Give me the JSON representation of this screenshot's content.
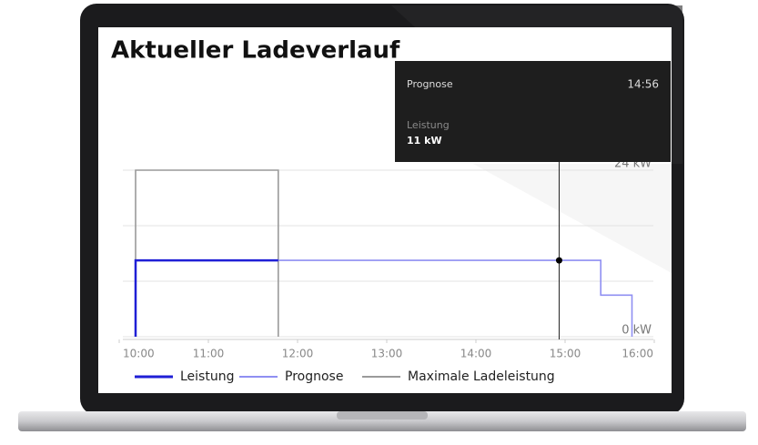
{
  "chart_data": {
    "type": "line",
    "title": "Aktueller Ladeverlauf",
    "xlim": [
      "10:00",
      "16:00"
    ],
    "xticks": [
      "10:00",
      "11:00",
      "12:00",
      "13:00",
      "14:00",
      "15:00",
      "16:00"
    ],
    "ylim": [
      0,
      24
    ],
    "yticks": [
      {
        "value": 0,
        "label": "0 kW"
      },
      {
        "value": 8,
        "label": null
      },
      {
        "value": 16,
        "label": null
      },
      {
        "value": 24,
        "label": "24 kW"
      }
    ],
    "grid": true,
    "series": [
      {
        "name": "Leistung",
        "color": "#1f1fd6",
        "x": [
          "10:11",
          "10:11",
          "11:47"
        ],
        "values": [
          0,
          11,
          11
        ]
      },
      {
        "name": "Prognose",
        "color": "#8f8ff2",
        "x": [
          "11:47",
          "15:24",
          "15:24",
          "15:45",
          "15:45"
        ],
        "values": [
          11,
          11,
          6,
          6,
          0
        ]
      },
      {
        "name": "Maximale Ladeleistung",
        "color": "#9a9a9a",
        "x": [
          "10:11",
          "10:11",
          "11:47",
          "11:47"
        ],
        "values": [
          0,
          24,
          24,
          0
        ]
      }
    ],
    "tooltip": {
      "series": "Prognose",
      "x": "14:56",
      "label": "Leistung",
      "value": 11,
      "value_label": "11 kW"
    }
  }
}
